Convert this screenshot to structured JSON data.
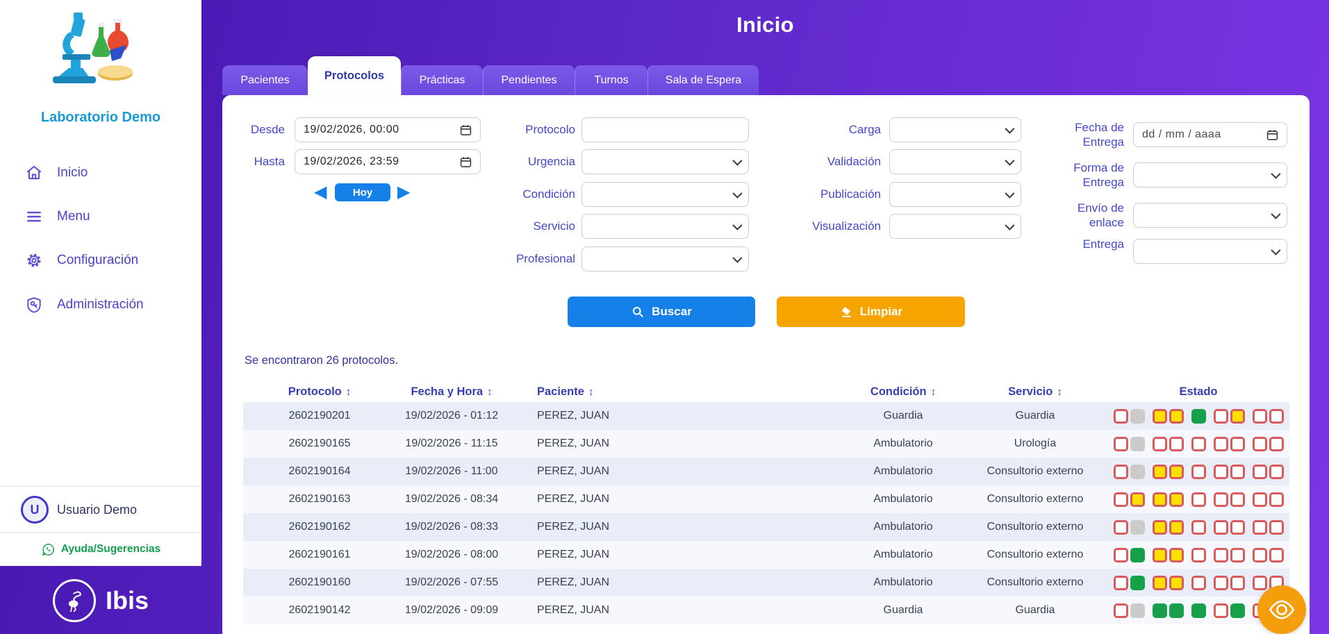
{
  "sidebar": {
    "brand": "Laboratorio Demo",
    "logo": "microscope-lab-illustration",
    "items": [
      {
        "icon": "home-icon",
        "label": "Inicio"
      },
      {
        "icon": "menu-icon",
        "label": "Menu"
      },
      {
        "icon": "gear-icon",
        "label": "Configuración"
      },
      {
        "icon": "shield-key-icon",
        "label": "Administración"
      }
    ],
    "user": {
      "initial": "U",
      "name": "Usuario Demo"
    },
    "help": {
      "icon": "whatsapp-icon",
      "label": "Ayuda/Sugerencias"
    },
    "footer": {
      "icon": "flamingo-icon",
      "brand": "Ibis"
    }
  },
  "header": {
    "title": "Inicio"
  },
  "tabs": [
    {
      "label": "Pacientes",
      "active": false
    },
    {
      "label": "Protocolos",
      "active": true
    },
    {
      "label": "Prácticas",
      "active": false
    },
    {
      "label": "Pendientes",
      "active": false
    },
    {
      "label": "Turnos",
      "active": false
    },
    {
      "label": "Sala de Espera",
      "active": false
    }
  ],
  "filters": {
    "date_range": {
      "desde": {
        "label": "Desde",
        "value": "19/02/2026, 00:00"
      },
      "hasta": {
        "label": "Hasta",
        "value": "19/02/2026, 23:59"
      },
      "hoy_label": "Hoy"
    },
    "column_a": [
      {
        "label": "Protocolo",
        "type": "text",
        "value": ""
      },
      {
        "label": "Urgencia",
        "type": "select",
        "value": ""
      },
      {
        "label": "Condición",
        "type": "select",
        "value": ""
      },
      {
        "label": "Servicio",
        "type": "select",
        "value": ""
      },
      {
        "label": "Profesional",
        "type": "select",
        "value": ""
      }
    ],
    "column_b": [
      {
        "label": "Carga",
        "type": "select",
        "value": ""
      },
      {
        "label": "Validación",
        "type": "select",
        "value": ""
      },
      {
        "label": "Publicación",
        "type": "select",
        "value": ""
      },
      {
        "label": "Visualización",
        "type": "select",
        "value": ""
      }
    ],
    "column_c": [
      {
        "label": "Fecha de Entrega",
        "type": "date",
        "placeholder": "dd / mm / aaaa"
      },
      {
        "label": "Forma de Entrega",
        "type": "select",
        "value": ""
      },
      {
        "label": "Envío de enlace",
        "type": "select",
        "value": ""
      },
      {
        "label": "Entrega",
        "type": "select",
        "value": ""
      }
    ],
    "buttons": {
      "buscar": "Buscar",
      "limpiar": "Limpiar"
    }
  },
  "results": {
    "summary": "Se encontraron 26 protocolos.",
    "columns": [
      {
        "label": "Protocolo",
        "sortable": true
      },
      {
        "label": "Fecha y Hora",
        "sortable": true
      },
      {
        "label": "Paciente",
        "sortable": true
      },
      {
        "label": "Condición",
        "sortable": true
      },
      {
        "label": "Servicio",
        "sortable": true
      },
      {
        "label": "Estado",
        "sortable": false
      }
    ],
    "estado_colors": {
      "empty_border": "#d85a5a",
      "yellow": "#ffdf00",
      "gray": "#cbcbcb",
      "green": "#16a04a"
    },
    "rows": [
      {
        "protocolo": "2602190201",
        "fecha": "19/02/2026 - 01:12",
        "paciente": "PEREZ, JUAN",
        "condicion": "Guardia",
        "servicio": "Guardia",
        "estado": [
          "empty",
          "gray",
          "yellow",
          "yellow",
          "green",
          "empty",
          "yellow",
          "empty",
          "empty"
        ]
      },
      {
        "protocolo": "2602190165",
        "fecha": "19/02/2026 - 11:15",
        "paciente": "PEREZ, JUAN",
        "condicion": "Ambulatorio",
        "servicio": "Urología",
        "estado": [
          "empty",
          "gray",
          "empty",
          "empty",
          "empty",
          "empty",
          "empty",
          "empty",
          "empty"
        ]
      },
      {
        "protocolo": "2602190164",
        "fecha": "19/02/2026 - 11:00",
        "paciente": "PEREZ, JUAN",
        "condicion": "Ambulatorio",
        "servicio": "Consultorio externo",
        "estado": [
          "empty",
          "gray",
          "yellow",
          "yellow",
          "empty",
          "empty",
          "empty",
          "empty",
          "empty"
        ]
      },
      {
        "protocolo": "2602190163",
        "fecha": "19/02/2026 - 08:34",
        "paciente": "PEREZ, JUAN",
        "condicion": "Ambulatorio",
        "servicio": "Consultorio externo",
        "estado": [
          "empty",
          "yellow",
          "yellow",
          "yellow",
          "empty",
          "empty",
          "empty",
          "empty",
          "empty"
        ]
      },
      {
        "protocolo": "2602190162",
        "fecha": "19/02/2026 - 08:33",
        "paciente": "PEREZ, JUAN",
        "condicion": "Ambulatorio",
        "servicio": "Consultorio externo",
        "estado": [
          "empty",
          "gray",
          "yellow",
          "yellow",
          "empty",
          "empty",
          "empty",
          "empty",
          "empty"
        ]
      },
      {
        "protocolo": "2602190161",
        "fecha": "19/02/2026 - 08:00",
        "paciente": "PEREZ, JUAN",
        "condicion": "Ambulatorio",
        "servicio": "Consultorio externo",
        "estado": [
          "empty",
          "green",
          "yellow",
          "yellow",
          "empty",
          "empty",
          "empty",
          "empty",
          "empty"
        ]
      },
      {
        "protocolo": "2602190160",
        "fecha": "19/02/2026 - 07:55",
        "paciente": "PEREZ, JUAN",
        "condicion": "Ambulatorio",
        "servicio": "Consultorio externo",
        "estado": [
          "empty",
          "green",
          "yellow",
          "yellow",
          "empty",
          "empty",
          "empty",
          "empty",
          "empty"
        ]
      },
      {
        "protocolo": "2602190142",
        "fecha": "19/02/2026 - 09:09",
        "paciente": "PEREZ, JUAN",
        "condicion": "Guardia",
        "servicio": "Guardia",
        "estado": [
          "empty",
          "gray",
          "green",
          "green",
          "green",
          "empty",
          "green",
          "empty",
          "empty"
        ]
      }
    ]
  },
  "fab": {
    "icon": "eye-icon"
  }
}
